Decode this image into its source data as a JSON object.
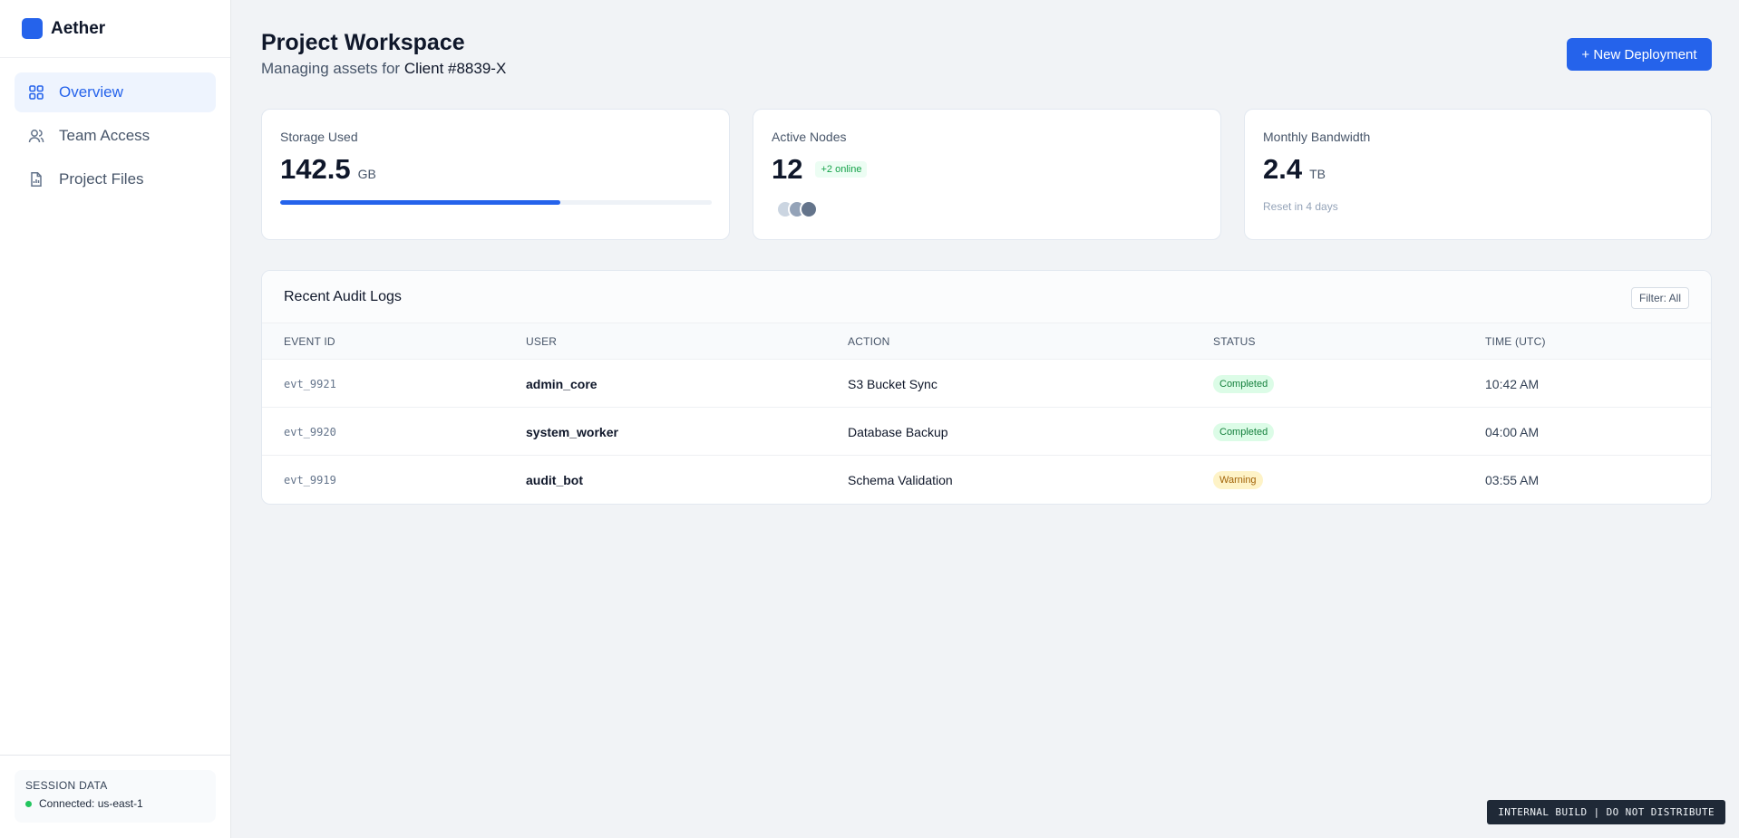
{
  "app": {
    "name": "Aether",
    "brand_color": "#2563eb"
  },
  "sidebar": {
    "items": [
      {
        "label": "Overview",
        "icon": "grid-icon",
        "active": true
      },
      {
        "label": "Team Access",
        "icon": "users-icon",
        "active": false
      },
      {
        "label": "Project Files",
        "icon": "file-icon",
        "active": false
      }
    ],
    "session": {
      "title": "SESSION DATA",
      "status": "Connected: us-east-1"
    }
  },
  "header": {
    "title": "Project Workspace",
    "subtitle_prefix": "Managing assets for",
    "client": "Client #8839-X",
    "new_button": "+ New Deployment"
  },
  "cards": {
    "storage": {
      "label": "Storage Used",
      "value": "142.5",
      "unit": "GB",
      "fraction": 0.65
    },
    "nodes": {
      "label": "Active Nodes",
      "value": "12",
      "badge": "+2 online",
      "avatar_colors": [
        "#cbd5e1",
        "#94a3b8",
        "#64748b"
      ]
    },
    "bandwidth": {
      "label": "Monthly Bandwidth",
      "value": "2.4",
      "unit": "TB",
      "note": "Reset in 4 days"
    }
  },
  "audit": {
    "title": "Recent Audit Logs",
    "filter": "Filter: All",
    "columns": [
      "EVENT ID",
      "USER",
      "ACTION",
      "STATUS",
      "TIME (UTC)"
    ],
    "rows": [
      {
        "id": "evt_9921",
        "user": "admin_core",
        "action": "S3 Bucket Sync",
        "status": "Completed",
        "time": "10:42 AM"
      },
      {
        "id": "evt_9920",
        "user": "system_worker",
        "action": "Database Backup",
        "status": "Completed",
        "time": "04:00 AM"
      },
      {
        "id": "evt_9919",
        "user": "audit_bot",
        "action": "Schema Validation",
        "status": "Warning",
        "time": "03:55 AM"
      }
    ],
    "status_colors": {
      "Completed": {
        "bg": "#dcfce7",
        "fg": "#15803d"
      },
      "Warning": {
        "bg": "#fef3c7",
        "fg": "#a16207"
      }
    }
  },
  "footer": {
    "tag": "INTERNAL BUILD | DO NOT DISTRIBUTE"
  }
}
